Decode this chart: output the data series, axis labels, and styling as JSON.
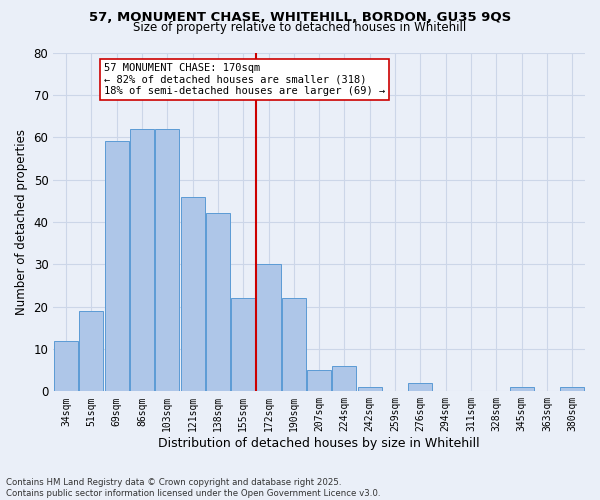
{
  "title_line1": "57, MONUMENT CHASE, WHITEHILL, BORDON, GU35 9QS",
  "title_line2": "Size of property relative to detached houses in Whitehill",
  "xlabel": "Distribution of detached houses by size in Whitehill",
  "ylabel": "Number of detached properties",
  "footer_line1": "Contains HM Land Registry data © Crown copyright and database right 2025.",
  "footer_line2": "Contains public sector information licensed under the Open Government Licence v3.0.",
  "categories": [
    "34sqm",
    "51sqm",
    "69sqm",
    "86sqm",
    "103sqm",
    "121sqm",
    "138sqm",
    "155sqm",
    "172sqm",
    "190sqm",
    "207sqm",
    "224sqm",
    "242sqm",
    "259sqm",
    "276sqm",
    "294sqm",
    "311sqm",
    "328sqm",
    "345sqm",
    "363sqm",
    "380sqm"
  ],
  "values": [
    12,
    19,
    59,
    62,
    62,
    46,
    42,
    22,
    30,
    22,
    5,
    6,
    1,
    0,
    2,
    0,
    0,
    0,
    1,
    0,
    1
  ],
  "bar_color": "#aec6e8",
  "bar_edge_color": "#5b9bd5",
  "grid_color": "#ccd6e8",
  "background_color": "#eaeff8",
  "vline_x": 8,
  "vline_color": "#cc0000",
  "annotation_text": "57 MONUMENT CHASE: 170sqm\n← 82% of detached houses are smaller (318)\n18% of semi-detached houses are larger (69) →",
  "annotation_box_color": "#ffffff",
  "annotation_box_edge_color": "#cc0000",
  "ylim": [
    0,
    80
  ],
  "yticks": [
    0,
    10,
    20,
    30,
    40,
    50,
    60,
    70,
    80
  ]
}
